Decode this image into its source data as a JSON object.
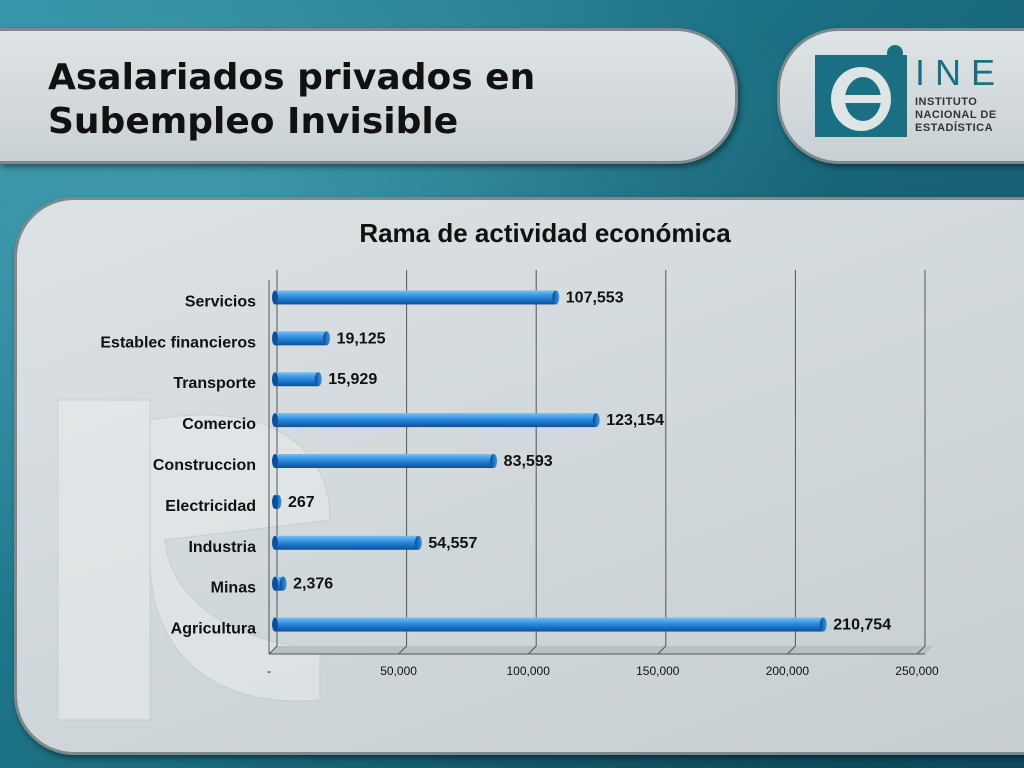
{
  "slide": {
    "title_line1": "Asalariados privados en",
    "title_line2": "Subempleo Invisible"
  },
  "logo": {
    "name": "INE",
    "line1": "INSTITUTO",
    "line2": "NACIONAL DE",
    "line3": "ESTADÍSTICA",
    "icon": "ine-e-logo-icon",
    "color": "#1b6f82"
  },
  "chart_data": {
    "type": "bar",
    "orientation": "horizontal",
    "title": "Rama de actividad económica",
    "categories": [
      "Servicios",
      "Establec financieros",
      "Transporte",
      "Comercio",
      "Construccion",
      "Electricidad",
      "Industria",
      "Minas",
      "Agricultura"
    ],
    "values": [
      107553,
      19125,
      15929,
      123154,
      83593,
      267,
      54557,
      2376,
      210754
    ],
    "value_labels": [
      "107,553",
      "19,125",
      "15,929",
      "123,154",
      "83,593",
      "267",
      "54,557",
      "2,376",
      "210,754"
    ],
    "xlim": [
      0,
      250000
    ],
    "xticks": [
      0,
      50000,
      100000,
      150000,
      200000,
      250000
    ],
    "xtick_labels": [
      "-",
      "50,000",
      "100,000",
      "150,000",
      "200,000",
      "250,000"
    ],
    "grid": "vertical",
    "bar_color": "#1f7fd0"
  }
}
